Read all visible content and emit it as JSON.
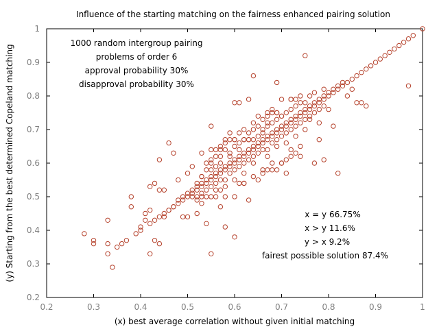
{
  "chart_data": {
    "type": "scatter",
    "title": "Influence of the starting matching on the fairness enhanced pairing solution",
    "xlabel": "(x) best average correlation without given initial matching",
    "ylabel": "(y) Starting from the best determined Copeland matching",
    "xlim": [
      0.2,
      1.0
    ],
    "ylim": [
      0.2,
      1.0
    ],
    "xticks": [
      "0.2",
      "0.3",
      "0.4",
      "0.5",
      "0.6",
      "0.7",
      "0.8",
      "0.9",
      "1"
    ],
    "yticks": [
      "0.2",
      "0.3",
      "0.4",
      "0.5",
      "0.6",
      "0.7",
      "0.8",
      "0.9",
      "1"
    ],
    "marker": "open-circle",
    "color": "#b5412b",
    "grid": false,
    "annotation_left": [
      "1000 random intergroup pairing",
      "problems of order 6",
      "approval probability 30%",
      "disapproval probability 30%"
    ],
    "annotation_right": [
      "x = y 66.75%",
      "x > y 11.6%",
      "y > x 9.2%",
      "fairest possible solution 87.4%"
    ],
    "points": [
      [
        0.28,
        0.39
      ],
      [
        0.3,
        0.36
      ],
      [
        0.3,
        0.37
      ],
      [
        0.33,
        0.43
      ],
      [
        0.33,
        0.33
      ],
      [
        0.33,
        0.36
      ],
      [
        0.34,
        0.29
      ],
      [
        0.35,
        0.35
      ],
      [
        0.36,
        0.36
      ],
      [
        0.37,
        0.37
      ],
      [
        0.38,
        0.47
      ],
      [
        0.38,
        0.5
      ],
      [
        0.39,
        0.39
      ],
      [
        0.4,
        0.4
      ],
      [
        0.4,
        0.41
      ],
      [
        0.41,
        0.43
      ],
      [
        0.41,
        0.45
      ],
      [
        0.42,
        0.33
      ],
      [
        0.42,
        0.42
      ],
      [
        0.42,
        0.46
      ],
      [
        0.42,
        0.53
      ],
      [
        0.43,
        0.43
      ],
      [
        0.43,
        0.54
      ],
      [
        0.43,
        0.37
      ],
      [
        0.44,
        0.36
      ],
      [
        0.44,
        0.44
      ],
      [
        0.44,
        0.52
      ],
      [
        0.44,
        0.61
      ],
      [
        0.45,
        0.44
      ],
      [
        0.45,
        0.45
      ],
      [
        0.45,
        0.52
      ],
      [
        0.46,
        0.46
      ],
      [
        0.46,
        0.66
      ],
      [
        0.47,
        0.47
      ],
      [
        0.47,
        0.63
      ],
      [
        0.48,
        0.48
      ],
      [
        0.48,
        0.55
      ],
      [
        0.49,
        0.44
      ],
      [
        0.49,
        0.49
      ],
      [
        0.5,
        0.5
      ],
      [
        0.5,
        0.44
      ],
      [
        0.5,
        0.57
      ],
      [
        0.51,
        0.51
      ],
      [
        0.51,
        0.59
      ],
      [
        0.52,
        0.52
      ],
      [
        0.52,
        0.45
      ],
      [
        0.52,
        0.54
      ],
      [
        0.53,
        0.53
      ],
      [
        0.53,
        0.48
      ],
      [
        0.53,
        0.56
      ],
      [
        0.53,
        0.63
      ],
      [
        0.54,
        0.54
      ],
      [
        0.54,
        0.5
      ],
      [
        0.54,
        0.42
      ],
      [
        0.55,
        0.55
      ],
      [
        0.55,
        0.71
      ],
      [
        0.55,
        0.6
      ],
      [
        0.55,
        0.33
      ],
      [
        0.56,
        0.56
      ],
      [
        0.56,
        0.52
      ],
      [
        0.56,
        0.62
      ],
      [
        0.57,
        0.57
      ],
      [
        0.57,
        0.47
      ],
      [
        0.57,
        0.65
      ],
      [
        0.58,
        0.58
      ],
      [
        0.58,
        0.53
      ],
      [
        0.58,
        0.41
      ],
      [
        0.59,
        0.59
      ],
      [
        0.59,
        0.62
      ],
      [
        0.59,
        0.69
      ],
      [
        0.6,
        0.6
      ],
      [
        0.6,
        0.55
      ],
      [
        0.6,
        0.78
      ],
      [
        0.6,
        0.38
      ],
      [
        0.61,
        0.61
      ],
      [
        0.61,
        0.66
      ],
      [
        0.61,
        0.78
      ],
      [
        0.62,
        0.62
      ],
      [
        0.62,
        0.57
      ],
      [
        0.62,
        0.54
      ],
      [
        0.63,
        0.63
      ],
      [
        0.63,
        0.67
      ],
      [
        0.63,
        0.49
      ],
      [
        0.63,
        0.79
      ],
      [
        0.64,
        0.64
      ],
      [
        0.64,
        0.86
      ],
      [
        0.64,
        0.6
      ],
      [
        0.65,
        0.65
      ],
      [
        0.65,
        0.74
      ],
      [
        0.65,
        0.55
      ],
      [
        0.66,
        0.66
      ],
      [
        0.66,
        0.7
      ],
      [
        0.66,
        0.58
      ],
      [
        0.67,
        0.67
      ],
      [
        0.67,
        0.62
      ],
      [
        0.67,
        0.72
      ],
      [
        0.68,
        0.68
      ],
      [
        0.68,
        0.6
      ],
      [
        0.68,
        0.76
      ],
      [
        0.69,
        0.69
      ],
      [
        0.69,
        0.65
      ],
      [
        0.69,
        0.84
      ],
      [
        0.7,
        0.7
      ],
      [
        0.7,
        0.74
      ],
      [
        0.7,
        0.6
      ],
      [
        0.71,
        0.71
      ],
      [
        0.71,
        0.66
      ],
      [
        0.71,
        0.57
      ],
      [
        0.72,
        0.72
      ],
      [
        0.72,
        0.79
      ],
      [
        0.72,
        0.64
      ],
      [
        0.73,
        0.73
      ],
      [
        0.73,
        0.68
      ],
      [
        0.74,
        0.74
      ],
      [
        0.74,
        0.62
      ],
      [
        0.75,
        0.75
      ],
      [
        0.75,
        0.92
      ],
      [
        0.75,
        0.7
      ],
      [
        0.76,
        0.76
      ],
      [
        0.76,
        0.73
      ],
      [
        0.77,
        0.77
      ],
      [
        0.77,
        0.6
      ],
      [
        0.78,
        0.78
      ],
      [
        0.78,
        0.67
      ],
      [
        0.78,
        0.72
      ],
      [
        0.79,
        0.79
      ],
      [
        0.79,
        0.61
      ],
      [
        0.8,
        0.8
      ],
      [
        0.8,
        0.76
      ],
      [
        0.81,
        0.81
      ],
      [
        0.81,
        0.71
      ],
      [
        0.82,
        0.82
      ],
      [
        0.82,
        0.57
      ],
      [
        0.83,
        0.83
      ],
      [
        0.84,
        0.84
      ],
      [
        0.84,
        0.8
      ],
      [
        0.85,
        0.85
      ],
      [
        0.85,
        0.82
      ],
      [
        0.86,
        0.86
      ],
      [
        0.86,
        0.78
      ],
      [
        0.87,
        0.87
      ],
      [
        0.87,
        0.78
      ],
      [
        0.88,
        0.88
      ],
      [
        0.88,
        0.77
      ],
      [
        0.89,
        0.89
      ],
      [
        0.9,
        0.9
      ],
      [
        0.91,
        0.91
      ],
      [
        0.92,
        0.92
      ],
      [
        0.93,
        0.93
      ],
      [
        0.94,
        0.94
      ],
      [
        0.95,
        0.95
      ],
      [
        0.96,
        0.96
      ],
      [
        0.97,
        0.97
      ],
      [
        0.97,
        0.83
      ],
      [
        0.98,
        0.98
      ],
      [
        1.0,
        1.0
      ],
      [
        0.46,
        0.46
      ],
      [
        0.47,
        0.47
      ],
      [
        0.48,
        0.49
      ],
      [
        0.49,
        0.5
      ],
      [
        0.5,
        0.51
      ],
      [
        0.51,
        0.52
      ],
      [
        0.52,
        0.53
      ],
      [
        0.53,
        0.54
      ],
      [
        0.54,
        0.55
      ],
      [
        0.55,
        0.56
      ],
      [
        0.56,
        0.57
      ],
      [
        0.57,
        0.58
      ],
      [
        0.58,
        0.59
      ],
      [
        0.59,
        0.6
      ],
      [
        0.6,
        0.61
      ],
      [
        0.61,
        0.62
      ],
      [
        0.62,
        0.63
      ],
      [
        0.63,
        0.64
      ],
      [
        0.64,
        0.65
      ],
      [
        0.65,
        0.66
      ],
      [
        0.66,
        0.67
      ],
      [
        0.67,
        0.68
      ],
      [
        0.68,
        0.69
      ],
      [
        0.69,
        0.7
      ],
      [
        0.7,
        0.71
      ],
      [
        0.71,
        0.72
      ],
      [
        0.72,
        0.73
      ],
      [
        0.73,
        0.74
      ],
      [
        0.74,
        0.75
      ],
      [
        0.75,
        0.76
      ],
      [
        0.76,
        0.77
      ],
      [
        0.77,
        0.78
      ],
      [
        0.78,
        0.79
      ],
      [
        0.79,
        0.8
      ],
      [
        0.8,
        0.81
      ],
      [
        0.81,
        0.82
      ],
      [
        0.82,
        0.83
      ],
      [
        0.83,
        0.84
      ],
      [
        0.53,
        0.56
      ],
      [
        0.54,
        0.58
      ],
      [
        0.54,
        0.6
      ],
      [
        0.55,
        0.61
      ],
      [
        0.55,
        0.58
      ],
      [
        0.56,
        0.59
      ],
      [
        0.57,
        0.6
      ],
      [
        0.57,
        0.62
      ],
      [
        0.58,
        0.64
      ],
      [
        0.58,
        0.66
      ],
      [
        0.59,
        0.63
      ],
      [
        0.6,
        0.65
      ],
      [
        0.6,
        0.67
      ],
      [
        0.61,
        0.64
      ],
      [
        0.61,
        0.69
      ],
      [
        0.62,
        0.67
      ],
      [
        0.62,
        0.7
      ],
      [
        0.63,
        0.69
      ],
      [
        0.64,
        0.67
      ],
      [
        0.64,
        0.7
      ],
      [
        0.65,
        0.68
      ],
      [
        0.65,
        0.71
      ],
      [
        0.66,
        0.69
      ],
      [
        0.67,
        0.71
      ],
      [
        0.67,
        0.74
      ],
      [
        0.68,
        0.72
      ],
      [
        0.69,
        0.73
      ],
      [
        0.69,
        0.75
      ],
      [
        0.7,
        0.74
      ],
      [
        0.71,
        0.75
      ],
      [
        0.72,
        0.76
      ],
      [
        0.73,
        0.77
      ],
      [
        0.74,
        0.78
      ],
      [
        0.75,
        0.78
      ],
      [
        0.52,
        0.49
      ],
      [
        0.53,
        0.51
      ],
      [
        0.54,
        0.52
      ],
      [
        0.55,
        0.53
      ],
      [
        0.56,
        0.54
      ],
      [
        0.57,
        0.55
      ],
      [
        0.58,
        0.55
      ],
      [
        0.59,
        0.57
      ],
      [
        0.6,
        0.58
      ],
      [
        0.61,
        0.59
      ],
      [
        0.62,
        0.6
      ],
      [
        0.63,
        0.61
      ],
      [
        0.64,
        0.62
      ],
      [
        0.65,
        0.63
      ],
      [
        0.66,
        0.64
      ],
      [
        0.67,
        0.64
      ],
      [
        0.68,
        0.66
      ],
      [
        0.69,
        0.67
      ],
      [
        0.7,
        0.68
      ],
      [
        0.71,
        0.69
      ],
      [
        0.72,
        0.7
      ],
      [
        0.73,
        0.71
      ],
      [
        0.74,
        0.72
      ],
      [
        0.75,
        0.73
      ],
      [
        0.76,
        0.74
      ],
      [
        0.77,
        0.75
      ],
      [
        0.78,
        0.76
      ],
      [
        0.79,
        0.77
      ],
      [
        0.51,
        0.5
      ],
      [
        0.52,
        0.5
      ],
      [
        0.53,
        0.5
      ],
      [
        0.55,
        0.5
      ],
      [
        0.56,
        0.5
      ],
      [
        0.57,
        0.52
      ],
      [
        0.58,
        0.5
      ],
      [
        0.6,
        0.5
      ],
      [
        0.61,
        0.54
      ],
      [
        0.62,
        0.54
      ],
      [
        0.64,
        0.56
      ],
      [
        0.66,
        0.57
      ],
      [
        0.67,
        0.58
      ],
      [
        0.68,
        0.58
      ],
      [
        0.69,
        0.58
      ],
      [
        0.7,
        0.6
      ],
      [
        0.71,
        0.61
      ],
      [
        0.72,
        0.62
      ],
      [
        0.73,
        0.63
      ],
      [
        0.74,
        0.65
      ],
      [
        0.55,
        0.64
      ],
      [
        0.56,
        0.64
      ],
      [
        0.57,
        0.64
      ],
      [
        0.58,
        0.67
      ],
      [
        0.59,
        0.67
      ],
      [
        0.6,
        0.67
      ],
      [
        0.62,
        0.67
      ],
      [
        0.63,
        0.67
      ],
      [
        0.64,
        0.72
      ],
      [
        0.66,
        0.73
      ],
      [
        0.67,
        0.75
      ],
      [
        0.68,
        0.75
      ],
      [
        0.69,
        0.75
      ],
      [
        0.7,
        0.79
      ],
      [
        0.72,
        0.79
      ],
      [
        0.73,
        0.79
      ],
      [
        0.74,
        0.8
      ],
      [
        0.76,
        0.8
      ],
      [
        0.77,
        0.81
      ],
      [
        0.79,
        0.82
      ]
    ]
  }
}
